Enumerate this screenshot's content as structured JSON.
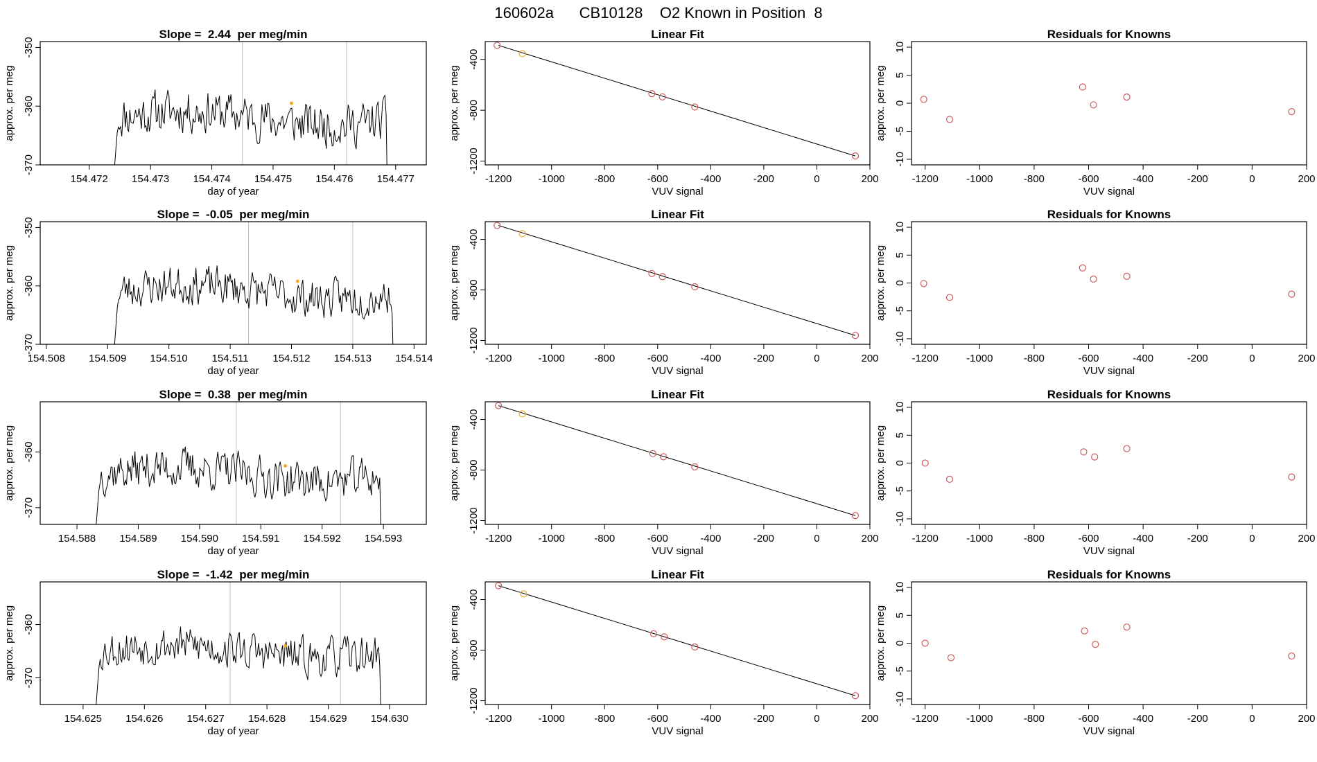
{
  "title": "160602a      CB10128    O2 Known in Position  8",
  "colors": {
    "line": "#000000",
    "frame": "#000000",
    "gridline": "#bebebe",
    "highlight": "#f5a623",
    "residual": "#cd5c5c"
  },
  "chart_data": [
    {
      "type": "line",
      "title": "Slope =  2.44  per meg/min",
      "xlabel": "day of year",
      "ylabel": "approx. per meg",
      "xlim": [
        154.4712,
        154.4775
      ],
      "ylim": [
        -370,
        -349
      ],
      "xticks": [
        "154.472",
        "154.473",
        "154.474",
        "154.475",
        "154.476",
        "154.477"
      ],
      "yticks": [
        "-350",
        "-360",
        "-370"
      ],
      "vlines": [
        154.4745,
        154.4762
      ],
      "trace_x_range": [
        154.4724,
        154.4769
      ],
      "trace_base": -362,
      "trace_amp": 5,
      "trace_seed": 11,
      "highlight_point": {
        "x": 154.4753,
        "y": -359.5
      }
    },
    {
      "type": "scatter",
      "title": "Linear Fit",
      "xlabel": "VUV signal",
      "ylabel": "approx. per meg",
      "xlim": [
        -1250,
        200
      ],
      "ylim": [
        -1230,
        -260
      ],
      "xticks": [
        "-1200",
        "-1000",
        "-800",
        "-600",
        "-400",
        "-200",
        "0",
        "200"
      ],
      "yticks": [
        "-400",
        "-800",
        "-1200"
      ],
      "fit_line": {
        "x": [
          -1200,
          145
        ],
        "y": [
          -290,
          -1160
        ]
      },
      "points": [
        {
          "x": -1205,
          "y": -290,
          "highlight": false
        },
        {
          "x": -1110,
          "y": -355,
          "highlight": true
        },
        {
          "x": -622,
          "y": -670,
          "highlight": false
        },
        {
          "x": -582,
          "y": -695,
          "highlight": false
        },
        {
          "x": -460,
          "y": -775,
          "highlight": false
        },
        {
          "x": 145,
          "y": -1160,
          "highlight": false
        }
      ]
    },
    {
      "type": "scatter",
      "title": "Residuals for Knowns",
      "xlabel": "VUV signal",
      "ylabel": "approx. per meg",
      "xlim": [
        -1250,
        200
      ],
      "ylim": [
        -11,
        11
      ],
      "xticks": [
        "-1200",
        "-1000",
        "-800",
        "-600",
        "-400",
        "-200",
        "0",
        "200"
      ],
      "yticks": [
        "10",
        "5",
        "0",
        "-5",
        "-10"
      ],
      "points": [
        {
          "x": -1205,
          "y": 0.7
        },
        {
          "x": -1110,
          "y": -2.9
        },
        {
          "x": -622,
          "y": 2.9
        },
        {
          "x": -582,
          "y": -0.3
        },
        {
          "x": -460,
          "y": 1.1
        },
        {
          "x": 145,
          "y": -1.5
        }
      ]
    },
    {
      "type": "line",
      "title": "Slope =  -0.05  per meg/min",
      "xlabel": "day of year",
      "ylabel": "approx. per meg",
      "xlim": [
        154.5079,
        154.5142
      ],
      "ylim": [
        -370,
        -349
      ],
      "xticks": [
        "154.508",
        "154.509",
        "154.510",
        "154.511",
        "154.512",
        "154.513",
        "154.514"
      ],
      "yticks": [
        "-350",
        "-360",
        "-370"
      ],
      "vlines": [
        154.5113,
        154.513
      ],
      "trace_x_range": [
        154.5091,
        154.5137
      ],
      "trace_base": -361,
      "trace_amp": 4.5,
      "trace_seed": 23,
      "highlight_point": {
        "x": 154.5121,
        "y": -359.2
      }
    },
    {
      "type": "scatter",
      "title": "Linear Fit",
      "xlabel": "VUV signal",
      "ylabel": "approx. per meg",
      "xlim": [
        -1250,
        200
      ],
      "ylim": [
        -1230,
        -260
      ],
      "xticks": [
        "-1200",
        "-1000",
        "-800",
        "-600",
        "-400",
        "-200",
        "0",
        "200"
      ],
      "yticks": [
        "-400",
        "-800",
        "-1200"
      ],
      "fit_line": {
        "x": [
          -1200,
          145
        ],
        "y": [
          -290,
          -1160
        ]
      },
      "points": [
        {
          "x": -1205,
          "y": -290,
          "highlight": false
        },
        {
          "x": -1110,
          "y": -355,
          "highlight": true
        },
        {
          "x": -622,
          "y": -670,
          "highlight": false
        },
        {
          "x": -582,
          "y": -695,
          "highlight": false
        },
        {
          "x": -460,
          "y": -775,
          "highlight": false
        },
        {
          "x": 145,
          "y": -1160,
          "highlight": false
        }
      ]
    },
    {
      "type": "scatter",
      "title": "Residuals for Knowns",
      "xlabel": "VUV signal",
      "ylabel": "approx. per meg",
      "xlim": [
        -1250,
        200
      ],
      "ylim": [
        -11,
        11
      ],
      "xticks": [
        "-1200",
        "-1000",
        "-800",
        "-600",
        "-400",
        "-200",
        "0",
        "200"
      ],
      "yticks": [
        "10",
        "5",
        "0",
        "-5",
        "-10"
      ],
      "points": [
        {
          "x": -1205,
          "y": -0.1
        },
        {
          "x": -1110,
          "y": -2.6
        },
        {
          "x": -622,
          "y": 2.7
        },
        {
          "x": -582,
          "y": 0.7
        },
        {
          "x": -460,
          "y": 1.2
        },
        {
          "x": 145,
          "y": -2.0
        }
      ]
    },
    {
      "type": "line",
      "title": "Slope =  0.38  per meg/min",
      "xlabel": "day of year",
      "ylabel": "approx. per meg",
      "xlim": [
        154.5874,
        154.5937
      ],
      "ylim": [
        -373,
        -351
      ],
      "xticks": [
        "154.588",
        "154.589",
        "154.590",
        "154.591",
        "154.592",
        "154.593"
      ],
      "yticks": [
        "-360",
        "-370"
      ],
      "vlines": [
        154.5906,
        154.5923
      ],
      "trace_x_range": [
        154.5883,
        154.593
      ],
      "trace_base": -364,
      "trace_amp": 5,
      "trace_seed": 37,
      "highlight_point": {
        "x": 154.5914,
        "y": -362.5
      }
    },
    {
      "type": "scatter",
      "title": "Linear Fit",
      "xlabel": "VUV signal",
      "ylabel": "approx. per meg",
      "xlim": [
        -1250,
        200
      ],
      "ylim": [
        -1230,
        -260
      ],
      "xticks": [
        "-1200",
        "-1000",
        "-800",
        "-600",
        "-400",
        "-200",
        "0",
        "200"
      ],
      "yticks": [
        "-400",
        "-800",
        "-1200"
      ],
      "fit_line": {
        "x": [
          -1200,
          145
        ],
        "y": [
          -290,
          -1160
        ]
      },
      "points": [
        {
          "x": -1200,
          "y": -290,
          "highlight": false
        },
        {
          "x": -1110,
          "y": -355,
          "highlight": true
        },
        {
          "x": -618,
          "y": -670,
          "highlight": false
        },
        {
          "x": -578,
          "y": -695,
          "highlight": false
        },
        {
          "x": -460,
          "y": -775,
          "highlight": false
        },
        {
          "x": 145,
          "y": -1160,
          "highlight": false
        }
      ]
    },
    {
      "type": "scatter",
      "title": "Residuals for Knowns",
      "xlabel": "VUV signal",
      "ylabel": "approx. per meg",
      "xlim": [
        -1250,
        200
      ],
      "ylim": [
        -11,
        11
      ],
      "xticks": [
        "-1200",
        "-1000",
        "-800",
        "-600",
        "-400",
        "-200",
        "0",
        "200"
      ],
      "yticks": [
        "10",
        "5",
        "0",
        "-5",
        "-10"
      ],
      "points": [
        {
          "x": -1200,
          "y": 0.0
        },
        {
          "x": -1110,
          "y": -2.9
        },
        {
          "x": -618,
          "y": 2.0
        },
        {
          "x": -578,
          "y": 1.1
        },
        {
          "x": -460,
          "y": 2.6
        },
        {
          "x": 145,
          "y": -2.5
        }
      ]
    },
    {
      "type": "line",
      "title": "Slope =  -1.42  per meg/min",
      "xlabel": "day of year",
      "ylabel": "approx. per meg",
      "xlim": [
        154.6243,
        154.6306
      ],
      "ylim": [
        -375,
        -352
      ],
      "xticks": [
        "154.625",
        "154.626",
        "154.627",
        "154.628",
        "154.629",
        "154.630"
      ],
      "yticks": [
        "-360",
        "-370"
      ],
      "vlines": [
        154.6274,
        154.6292
      ],
      "trace_x_range": [
        154.6252,
        154.6299
      ],
      "trace_base": -365,
      "trace_amp": 5,
      "trace_seed": 53,
      "highlight_point": {
        "x": 154.6283,
        "y": -364
      }
    },
    {
      "type": "scatter",
      "title": "Linear Fit",
      "xlabel": "VUV signal",
      "ylabel": "approx. per meg",
      "xlim": [
        -1250,
        200
      ],
      "ylim": [
        -1230,
        -260
      ],
      "xticks": [
        "-1200",
        "-1000",
        "-800",
        "-600",
        "-400",
        "-200",
        "0",
        "200"
      ],
      "yticks": [
        "-400",
        "-800",
        "-1200"
      ],
      "fit_line": {
        "x": [
          -1200,
          145
        ],
        "y": [
          -290,
          -1160
        ]
      },
      "points": [
        {
          "x": -1200,
          "y": -290,
          "highlight": false
        },
        {
          "x": -1105,
          "y": -355,
          "highlight": true
        },
        {
          "x": -615,
          "y": -670,
          "highlight": false
        },
        {
          "x": -575,
          "y": -695,
          "highlight": false
        },
        {
          "x": -460,
          "y": -775,
          "highlight": false
        },
        {
          "x": 145,
          "y": -1160,
          "highlight": false
        }
      ]
    },
    {
      "type": "scatter",
      "title": "Residuals for Knowns",
      "xlabel": "VUV signal",
      "ylabel": "approx. per meg",
      "xlim": [
        -1250,
        200
      ],
      "ylim": [
        -11,
        11
      ],
      "xticks": [
        "-1200",
        "-1000",
        "-800",
        "-600",
        "-400",
        "-200",
        "0",
        "200"
      ],
      "yticks": [
        "10",
        "5",
        "0",
        "-5",
        "-10"
      ],
      "points": [
        {
          "x": -1200,
          "y": 0.0
        },
        {
          "x": -1105,
          "y": -2.6
        },
        {
          "x": -615,
          "y": 2.2
        },
        {
          "x": -575,
          "y": -0.2
        },
        {
          "x": -460,
          "y": 2.9
        },
        {
          "x": 145,
          "y": -2.3
        }
      ]
    }
  ]
}
